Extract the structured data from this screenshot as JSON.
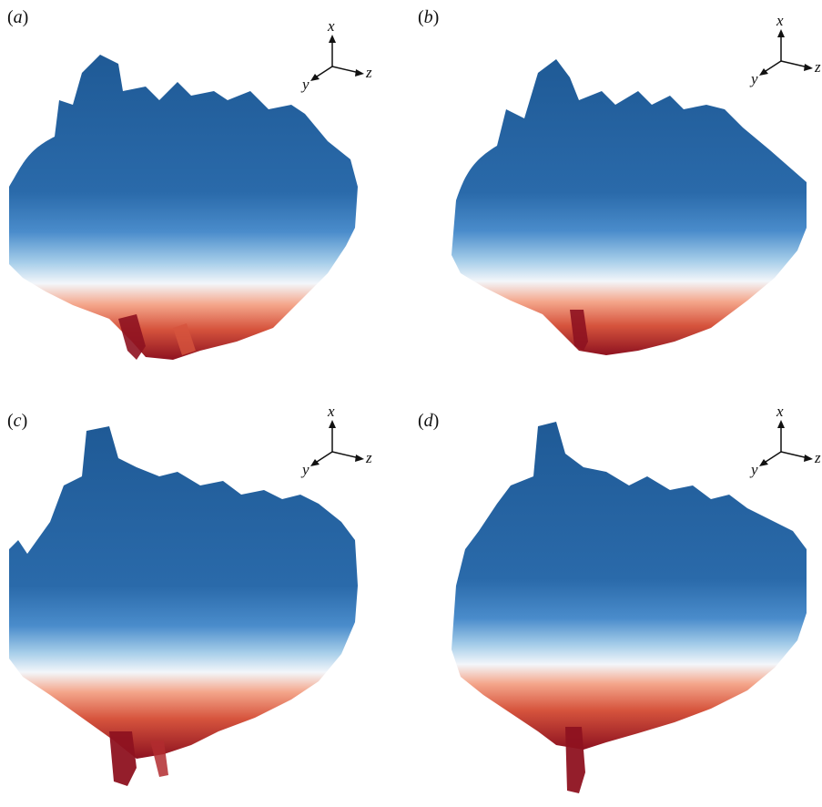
{
  "panels": [
    {
      "label": "a",
      "axes": {
        "up": "x",
        "right": "z",
        "diag": "y"
      }
    },
    {
      "label": "b",
      "axes": {
        "up": "x",
        "right": "z",
        "diag": "y"
      }
    },
    {
      "label": "c",
      "axes": {
        "up": "x",
        "right": "z",
        "diag": "y"
      }
    },
    {
      "label": "d",
      "axes": {
        "up": "x",
        "right": "z",
        "diag": "y"
      }
    }
  ],
  "colors": {
    "plume_dark_blue": "#1f5a96",
    "plume_mid_blue": "#3d7fc0",
    "plume_light_blue": "#9ecae8",
    "plume_white": "#f3f6fa",
    "plume_light_red": "#f4a58a",
    "plume_red": "#d6543d",
    "plume_dark_red": "#8e1220"
  }
}
